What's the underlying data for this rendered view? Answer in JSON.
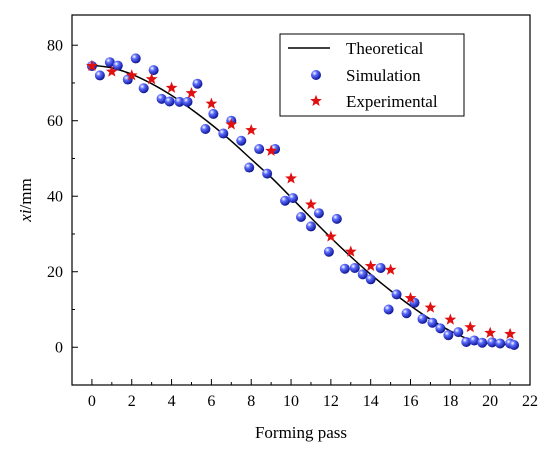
{
  "chart_data": {
    "type": "scatter",
    "title": "",
    "xlabel": "Forming pass",
    "ylabel_var": "xi",
    "ylabel_unit": "/mm",
    "xlim": [
      -1,
      22
    ],
    "ylim": [
      -10,
      88
    ],
    "xticks": [
      "0",
      "2",
      "4",
      "6",
      "8",
      "10",
      "12",
      "14",
      "16",
      "18",
      "20",
      "22"
    ],
    "yticks": [
      "0",
      "20",
      "40",
      "60",
      "80"
    ],
    "grid": false,
    "legend_position": "top-right",
    "colors": {
      "theoretical": "#000000",
      "simulation": "#2233dd",
      "experimental": "#e01010"
    },
    "series": [
      {
        "name": "Theoretical",
        "kind": "line",
        "points": [
          [
            0,
            74.7
          ],
          [
            1,
            74.0
          ],
          [
            2,
            72.3
          ],
          [
            3,
            69.8
          ],
          [
            4,
            66.7
          ],
          [
            5,
            63.0
          ],
          [
            6,
            59.0
          ],
          [
            7,
            54.6
          ],
          [
            8,
            49.8
          ],
          [
            9,
            45.0
          ],
          [
            10,
            39.7
          ],
          [
            11,
            34.3
          ],
          [
            12,
            29.0
          ],
          [
            13,
            24.0
          ],
          [
            14,
            19.3
          ],
          [
            15,
            15.0
          ],
          [
            16,
            11.0
          ],
          [
            17,
            7.4
          ],
          [
            18,
            4.3
          ],
          [
            19,
            2.0
          ],
          [
            20,
            1.0
          ],
          [
            21,
            0.7
          ]
        ]
      },
      {
        "name": "Simulation",
        "kind": "ball",
        "points": [
          [
            0,
            74.5
          ],
          [
            0.4,
            72.0
          ],
          [
            0.9,
            75.5
          ],
          [
            1.3,
            74.6
          ],
          [
            1.8,
            70.9
          ],
          [
            2.2,
            76.5
          ],
          [
            2.6,
            68.6
          ],
          [
            3.1,
            73.4
          ],
          [
            3.5,
            65.8
          ],
          [
            3.9,
            65.1
          ],
          [
            4.4,
            65.0
          ],
          [
            4.8,
            65.0
          ],
          [
            5.3,
            69.8
          ],
          [
            5.7,
            57.8
          ],
          [
            6.1,
            61.8
          ],
          [
            6.6,
            56.6
          ],
          [
            7.0,
            60.0
          ],
          [
            7.5,
            54.7
          ],
          [
            7.9,
            47.6
          ],
          [
            8.4,
            52.5
          ],
          [
            8.8,
            46.0
          ],
          [
            9.2,
            52.5
          ],
          [
            9.7,
            38.8
          ],
          [
            10.1,
            39.5
          ],
          [
            10.5,
            34.5
          ],
          [
            11.0,
            32.0
          ],
          [
            11.4,
            35.5
          ],
          [
            11.9,
            25.3
          ],
          [
            12.3,
            34.0
          ],
          [
            12.7,
            20.8
          ],
          [
            13.2,
            21.0
          ],
          [
            13.6,
            19.3
          ],
          [
            14.0,
            18.0
          ],
          [
            14.5,
            21.0
          ],
          [
            14.9,
            10.0
          ],
          [
            15.3,
            14.0
          ],
          [
            15.8,
            9.0
          ],
          [
            16.2,
            11.8
          ],
          [
            16.6,
            7.5
          ],
          [
            17.1,
            6.5
          ],
          [
            17.5,
            5.0
          ],
          [
            17.9,
            3.2
          ],
          [
            18.4,
            4.0
          ],
          [
            18.8,
            1.4
          ],
          [
            19.2,
            1.8
          ],
          [
            19.6,
            1.2
          ],
          [
            20.1,
            1.3
          ],
          [
            20.5,
            1.0
          ],
          [
            21.0,
            1.0
          ],
          [
            21.2,
            0.6
          ]
        ]
      },
      {
        "name": "Experimental",
        "kind": "star",
        "points": [
          [
            0,
            74.5
          ],
          [
            1,
            73.0
          ],
          [
            2,
            72.0
          ],
          [
            3,
            71.0
          ],
          [
            4,
            68.7
          ],
          [
            5,
            67.3
          ],
          [
            6,
            64.5
          ],
          [
            7,
            59.0
          ],
          [
            8,
            57.5
          ],
          [
            9,
            52.0
          ],
          [
            10,
            44.7
          ],
          [
            11,
            37.8
          ],
          [
            12,
            29.3
          ],
          [
            13,
            25.3
          ],
          [
            14,
            21.5
          ],
          [
            15,
            20.5
          ],
          [
            16,
            13.0
          ],
          [
            17,
            10.5
          ],
          [
            18,
            7.3
          ],
          [
            19,
            5.3
          ],
          [
            20,
            3.8
          ],
          [
            21,
            3.5
          ]
        ]
      }
    ]
  }
}
